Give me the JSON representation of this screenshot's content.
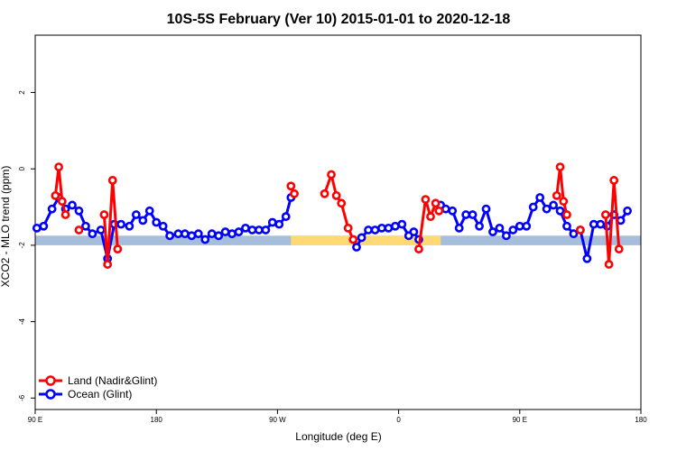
{
  "chart_data": {
    "type": "line",
    "title": "10S-5S February (Ver 10)   2015-01-01 to 2020-12-18",
    "xlabel": "Longitude (deg E)",
    "ylabel": "XCO2 - MLO trend (ppm)",
    "xlim": [
      90,
      450
    ],
    "ylim": [
      -6.3,
      3.5
    ],
    "xticks": [
      {
        "value": 90,
        "label": "90 E"
      },
      {
        "value": 180,
        "label": "180"
      },
      {
        "value": 270,
        "label": "90 W"
      },
      {
        "value": 360,
        "label": "0"
      },
      {
        "value": 450,
        "label": "90 E"
      },
      {
        "value": 540,
        "label": "180"
      }
    ],
    "xtick_display": [
      90,
      162,
      234,
      306,
      378,
      450
    ],
    "yticks": [
      {
        "value": 2,
        "label": "2"
      },
      {
        "value": 0,
        "label": "0"
      },
      {
        "value": -2,
        "label": "-2"
      },
      {
        "value": -4,
        "label": "-4"
      },
      {
        "value": -6,
        "label": "-6"
      }
    ],
    "grid": false,
    "legend_position": "bottom-left",
    "background_band": {
      "y_range": [
        -2.0,
        -1.75
      ]
    },
    "colors": {
      "land": "#ff0000",
      "ocean": "#0000ff",
      "band_ocean": "#a6bddb",
      "band_land": "#fed976"
    },
    "series": [
      {
        "name": "Land (Nadir&Glint)",
        "segments": [
          [
            [
              102,
              -0.7
            ],
            [
              104,
              0.05
            ],
            [
              106,
              -0.85
            ],
            [
              108,
              -1.2
            ]
          ],
          [
            [
              116,
              -1.6
            ]
          ],
          [
            [
              131,
              -1.2
            ],
            [
              133,
              -2.5
            ],
            [
              136,
              -0.3
            ],
            [
              139,
              -2.1
            ]
          ],
          [
            [
              242,
              -0.45
            ],
            [
              244,
              -0.65
            ]
          ],
          [
            [
              262,
              -0.65
            ],
            [
              266,
              -0.15
            ],
            [
              269,
              -0.7
            ],
            [
              272,
              -0.9
            ],
            [
              276,
              -1.55
            ],
            [
              279,
              -1.85
            ]
          ],
          [
            [
              318,
              -2.1
            ],
            [
              322,
              -0.8
            ],
            [
              325,
              -1.25
            ],
            [
              328,
              -0.9
            ],
            [
              330,
              -1.1
            ]
          ],
          [
            [
              400,
              -0.7
            ],
            [
              402,
              0.05
            ],
            [
              404,
              -0.85
            ],
            [
              406,
              -1.2
            ]
          ],
          [
            [
              414,
              -1.6
            ]
          ],
          [
            [
              429,
              -1.2
            ],
            [
              431,
              -2.5
            ],
            [
              434,
              -0.3
            ],
            [
              437,
              -2.1
            ]
          ]
        ]
      },
      {
        "name": "Ocean (Glint)",
        "segments": [
          [
            [
              91,
              -1.55
            ],
            [
              95,
              -1.5
            ],
            [
              100,
              -1.05
            ],
            [
              104,
              -0.75
            ],
            [
              108,
              -1.05
            ],
            [
              112,
              -0.95
            ],
            [
              116,
              -1.1
            ],
            [
              120,
              -1.5
            ],
            [
              124,
              -1.7
            ],
            [
              129,
              -1.6
            ],
            [
              133,
              -2.35
            ],
            [
              137,
              -1.45
            ],
            [
              141,
              -1.45
            ],
            [
              146,
              -1.5
            ],
            [
              150,
              -1.2
            ],
            [
              154,
              -1.35
            ],
            [
              158,
              -1.1
            ],
            [
              162,
              -1.4
            ],
            [
              166,
              -1.5
            ],
            [
              170,
              -1.75
            ],
            [
              175,
              -1.7
            ],
            [
              179,
              -1.7
            ],
            [
              183,
              -1.75
            ],
            [
              187,
              -1.7
            ],
            [
              191,
              -1.85
            ],
            [
              195,
              -1.7
            ],
            [
              199,
              -1.75
            ],
            [
              203,
              -1.65
            ],
            [
              207,
              -1.7
            ],
            [
              211,
              -1.65
            ],
            [
              215,
              -1.55
            ],
            [
              219,
              -1.6
            ],
            [
              223,
              -1.6
            ],
            [
              227,
              -1.6
            ],
            [
              231,
              -1.4
            ],
            [
              235,
              -1.45
            ],
            [
              239,
              -1.25
            ],
            [
              242,
              -0.75
            ]
          ],
          [
            [
              281,
              -2.05
            ],
            [
              284,
              -1.8
            ],
            [
              288,
              -1.6
            ],
            [
              292,
              -1.6
            ],
            [
              296,
              -1.55
            ],
            [
              300,
              -1.55
            ],
            [
              304,
              -1.5
            ],
            [
              308,
              -1.45
            ],
            [
              312,
              -1.75
            ],
            [
              315,
              -1.65
            ],
            [
              318,
              -1.85
            ]
          ],
          [
            [
              331,
              -0.95
            ],
            [
              334,
              -1.05
            ],
            [
              338,
              -1.1
            ],
            [
              342,
              -1.55
            ],
            [
              346,
              -1.2
            ],
            [
              350,
              -1.2
            ],
            [
              354,
              -1.5
            ],
            [
              358,
              -1.05
            ],
            [
              362,
              -1.65
            ],
            [
              366,
              -1.55
            ],
            [
              370,
              -1.75
            ],
            [
              374,
              -1.6
            ],
            [
              378,
              -1.5
            ],
            [
              382,
              -1.5
            ],
            [
              386,
              -1.0
            ],
            [
              390,
              -0.75
            ],
            [
              394,
              -1.05
            ],
            [
              398,
              -0.95
            ],
            [
              402,
              -1.1
            ],
            [
              406,
              -1.5
            ],
            [
              410,
              -1.7
            ],
            [
              414,
              -1.6
            ],
            [
              418,
              -2.35
            ],
            [
              422,
              -1.45
            ],
            [
              426,
              -1.45
            ],
            [
              430,
              -1.5
            ],
            [
              434,
              -1.2
            ],
            [
              438,
              -1.35
            ],
            [
              442,
              -1.1
            ]
          ]
        ]
      }
    ]
  }
}
